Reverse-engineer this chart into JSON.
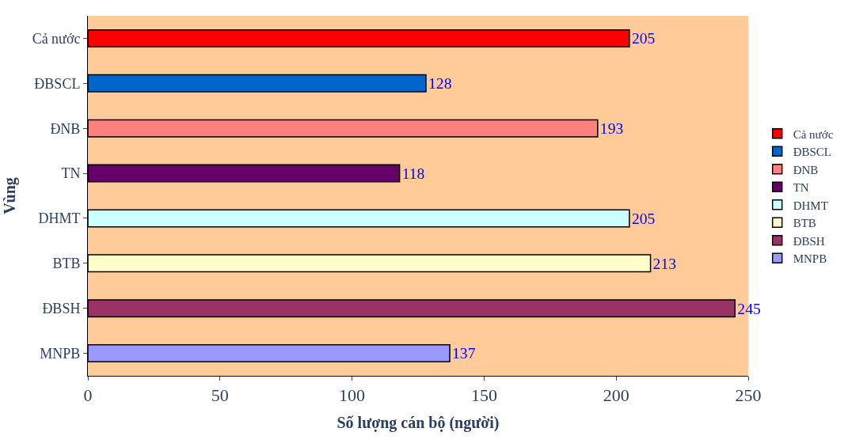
{
  "chart_data": {
    "type": "bar",
    "orientation": "horizontal",
    "xlabel": "Số lượng cán bộ (người)",
    "ylabel": "Vùng",
    "categories": [
      "Cả nước",
      "ĐBSCL",
      "ĐNB",
      "TN",
      "DHMT",
      "BTB",
      "ĐBSH",
      "MNPB"
    ],
    "series": [
      {
        "name": "Cả nước",
        "color": "#ff0000",
        "values": [
          205,
          null,
          null,
          null,
          null,
          null,
          null,
          null
        ]
      },
      {
        "name": "ĐBSCL",
        "color": "#0066cc",
        "values": [
          null,
          128,
          null,
          null,
          null,
          null,
          null,
          null
        ]
      },
      {
        "name": "ĐNB",
        "color": "#ff8080",
        "values": [
          null,
          null,
          193,
          null,
          null,
          null,
          null,
          null
        ]
      },
      {
        "name": "TN",
        "color": "#660066",
        "values": [
          null,
          null,
          null,
          118,
          null,
          null,
          null,
          null
        ]
      },
      {
        "name": "DHMT",
        "color": "#ccffff",
        "values": [
          null,
          null,
          null,
          null,
          205,
          null,
          null,
          null
        ]
      },
      {
        "name": "BTB",
        "color": "#ffffcc",
        "values": [
          null,
          null,
          null,
          null,
          null,
          213,
          null,
          null
        ]
      },
      {
        "name": "ĐBSH",
        "color": "#993366",
        "values": [
          null,
          null,
          null,
          null,
          null,
          null,
          245,
          null
        ]
      },
      {
        "name": "MNPB",
        "color": "#9999ff",
        "values": [
          null,
          null,
          null,
          null,
          null,
          null,
          null,
          137
        ]
      }
    ],
    "xlim": [
      0,
      250
    ],
    "xticks": [
      0,
      50,
      100,
      150,
      200,
      250
    ],
    "grid": false,
    "legend": "right",
    "data_labels": true
  }
}
